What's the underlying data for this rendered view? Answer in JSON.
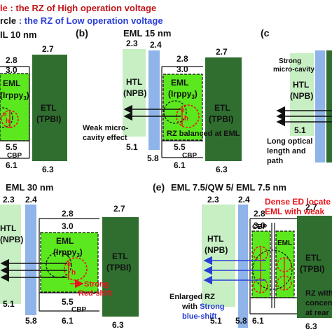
{
  "legend": {
    "line1_prefix": "le",
    "line1_text": " : the RZ of High operation voltage",
    "line2_prefix": "rcle",
    "line2_text": " : the RZ of Low operation voltage"
  },
  "panels": {
    "a": {
      "title": "IL 10 nm",
      "lumo_htl_val": "2.8",
      "lumo_cbp": "3.0",
      "lumo_etl": "2.7",
      "homo_cbp": "5.5",
      "homo_cbp_label": "CBP",
      "homo_htl": "6.1",
      "homo_etl": "6.3",
      "eml_label": "EML",
      "eml_sub": "(Irppy",
      "eml_sub2": "3",
      "eml_sub3": ")",
      "etl_label": "ETL",
      "etl_sub": "(TPBI)"
    },
    "b": {
      "letter": "(b)",
      "title": "EML 15 nm",
      "htl_lumo": "2.3",
      "cbp_lumo": "2.4",
      "lumo_a": "2.8",
      "lumo_b": "3.0",
      "etl_lumo": "2.7",
      "htl_label": "HTL",
      "htl_sub": "(NPB)",
      "eml_label": "EML",
      "eml_sub": "(Irppy",
      "eml_sub2": "3",
      "eml_sub3": ")",
      "etl_label": "ETL",
      "etl_sub": "(TPBI)",
      "homo_cbp": "5.5",
      "homo_cbp_label": "CBP",
      "htl_homo": "5.1",
      "cbp_homo": "5.8",
      "homo_eml": "6.1",
      "homo_etl": "6.3",
      "note_weak1": "Weak micro-",
      "note_weak2": "cavity effect",
      "note_rz": "RZ balanced at EML"
    },
    "c": {
      "letter": "(c",
      "note_strong1": "Strong",
      "note_strong2": "micro-cavity",
      "htl_label": "HTL",
      "htl_sub": "(NPB)",
      "homo": "5.1",
      "note_long1": "Long optical",
      "note_long2": "length and",
      "note_long3": "path"
    },
    "d": {
      "title": "EML 30 nm",
      "htl_lumo": "2.3",
      "cbp_lumo": "2.4",
      "lumo_a": "2.8",
      "lumo_b": "3.0",
      "etl_lumo": "2.7",
      "htl_label": "HTL",
      "htl_sub": "(NPB)",
      "eml_label": "EML",
      "eml_sub": "(Irppy",
      "eml_sub2": "3",
      "eml_sub3": ")",
      "etl_label": "ETL",
      "etl_sub": "(TPBI)",
      "note_strong": "Strong",
      "note_red": "Red-shift",
      "homo_cbp": "5.5",
      "homo_cbp_label": "CBP",
      "htl_homo": "5.1",
      "cbp_homo": "5.8",
      "homo_eml": "6.1",
      "homo_etl": "6.3"
    },
    "e": {
      "letter": "(e)",
      "title": "EML 7.5/QW 5/ EML 7.5 nm",
      "htl_lumo": "2.3",
      "cbp_lumo": "2.4",
      "lumo_a": "2.8",
      "lumo_b": "3.0",
      "etl_lumo": "2.7",
      "cbp_label": "CBP",
      "htl_label": "HTL",
      "htl_sub": "(NPB)",
      "eml_label": "EML",
      "etl_label": "ETL",
      "etl_sub": "(TPBI)",
      "note_dense1": "Dense ED locate",
      "note_dense2": "EML with weak",
      "note_enl1": "Enlarged RZ",
      "note_enl2": "with",
      "note_enl3": "Strong",
      "note_enl4": "blue-shift",
      "note_rz1": "RZ with",
      "note_rz2": "concent",
      "note_rz3": "at rear",
      "htl_homo": "5.1",
      "cbp_homo": "5.8",
      "homo_a": "6.1",
      "homo_etl": "6.3"
    }
  },
  "colors": {
    "htl": "#c7efc3",
    "cbp": "#8eb4ea",
    "eml": "#5ce81e",
    "etl": "#2f6e2f",
    "red": "#e8151b",
    "blue": "#2a3fd6"
  }
}
